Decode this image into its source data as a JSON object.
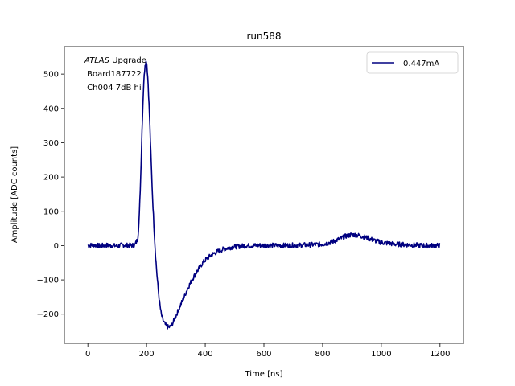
{
  "chart_data": {
    "type": "line",
    "title": "run588",
    "xlabel": "Time [ns]",
    "ylabel": "Amplitude [ADC counts]",
    "xlim": [
      -80,
      1280
    ],
    "ylim": [
      -285,
      580
    ],
    "xticks": [
      0,
      200,
      400,
      600,
      800,
      1000,
      1200
    ],
    "xtick_labels": [
      "0",
      "200",
      "400",
      "600",
      "800",
      "1000",
      "1200"
    ],
    "yticks": [
      -200,
      -100,
      0,
      100,
      200,
      300,
      400,
      500
    ],
    "ytick_labels": [
      "−200",
      "−100",
      "0",
      "100",
      "200",
      "300",
      "400",
      "500"
    ],
    "grid": false,
    "legend_position": "top-right",
    "annotation": {
      "italic": "ATLAS",
      "line1_rest": " Upgrade",
      "line2": " Board187722",
      "line3": " Ch004 7dB hi"
    },
    "series": [
      {
        "name": "0.447mA",
        "color": "#000080",
        "x": [
          0,
          20,
          40,
          60,
          80,
          100,
          120,
          140,
          160,
          170,
          175,
          180,
          185,
          190,
          195,
          200,
          205,
          210,
          215,
          220,
          225,
          230,
          235,
          240,
          245,
          250,
          255,
          260,
          265,
          270,
          275,
          280,
          285,
          290,
          295,
          300,
          310,
          320,
          330,
          340,
          350,
          360,
          370,
          380,
          390,
          400,
          420,
          440,
          460,
          480,
          500,
          530,
          560,
          600,
          650,
          700,
          750,
          800,
          830,
          860,
          880,
          900,
          920,
          940,
          960,
          980,
          1000,
          1050,
          1100,
          1150,
          1200
        ],
        "y": [
          0,
          2,
          -1,
          1,
          0,
          -1,
          2,
          0,
          1,
          20,
          80,
          200,
          350,
          470,
          530,
          540,
          480,
          380,
          260,
          150,
          60,
          -20,
          -80,
          -130,
          -170,
          -200,
          -215,
          -225,
          -232,
          -236,
          -238,
          -237,
          -232,
          -225,
          -215,
          -205,
          -185,
          -165,
          -145,
          -125,
          -108,
          -92,
          -78,
          -65,
          -52,
          -42,
          -28,
          -18,
          -11,
          -6,
          -3,
          -1,
          0,
          1,
          0,
          1,
          2,
          4,
          10,
          20,
          28,
          32,
          30,
          26,
          20,
          14,
          9,
          4,
          2,
          0,
          0
        ]
      }
    ]
  }
}
